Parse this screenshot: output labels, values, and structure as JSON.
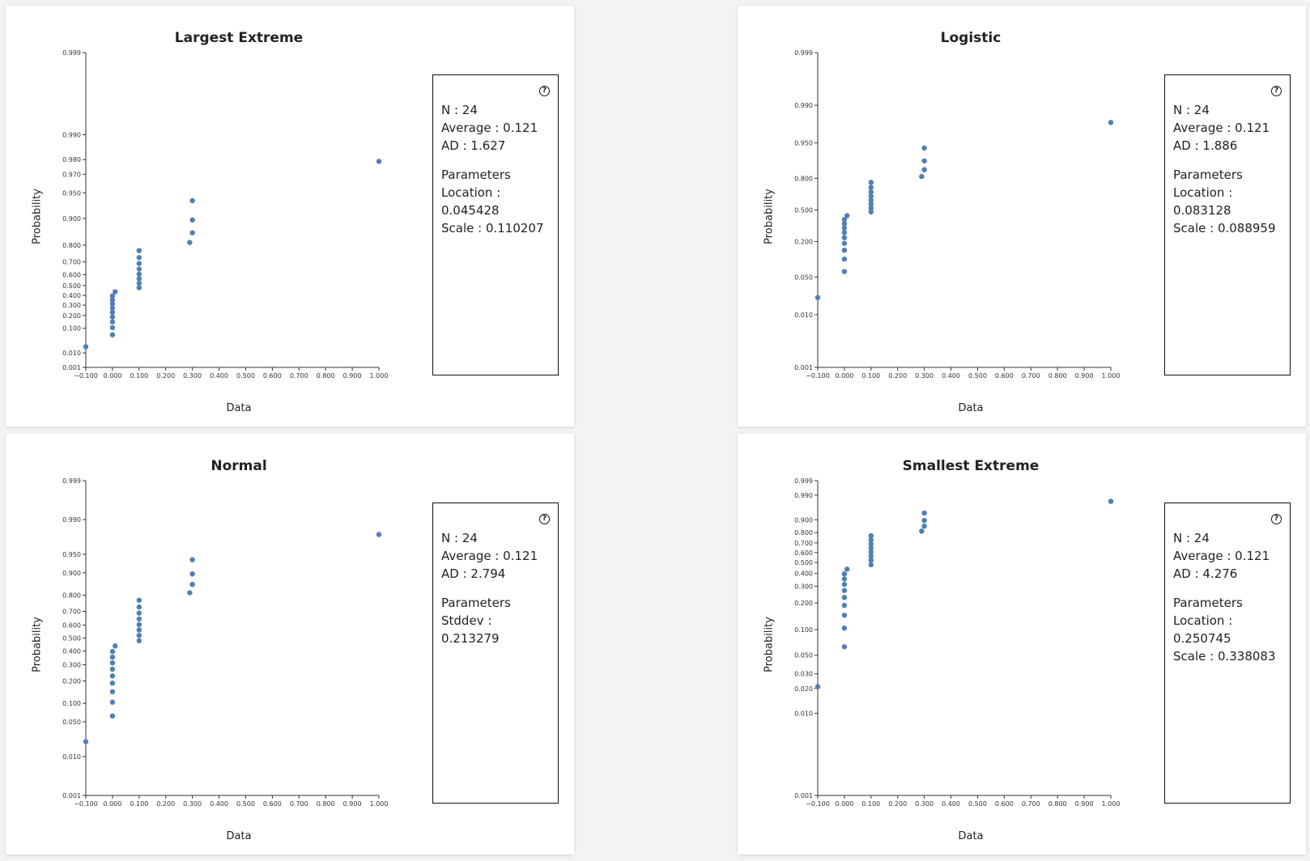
{
  "panels": [
    {
      "title": "Largest Extreme",
      "stats": {
        "n": "N : 24",
        "average": "Average : 0.121",
        "ad": "AD : 1.627",
        "params_header": "Parameters",
        "params": [
          "Location :",
          "0.045428",
          "Scale : 0.110207"
        ]
      }
    },
    {
      "title": "Logistic",
      "stats": {
        "n": "N : 24",
        "average": "Average : 0.121",
        "ad": "AD : 1.886",
        "params_header": "Parameters",
        "params": [
          "Location :",
          "0.083128",
          "Scale : 0.088959"
        ]
      }
    },
    {
      "title": "Normal",
      "stats": {
        "n": "N : 24",
        "average": "Average : 0.121",
        "ad": "AD : 2.794",
        "params_header": "Parameters",
        "params": [
          "Stddev : 0.213279"
        ]
      }
    },
    {
      "title": "Smallest Extreme",
      "stats": {
        "n": "N : 24",
        "average": "Average : 0.121",
        "ad": "AD : 4.276",
        "params_header": "Parameters",
        "params": [
          "Location :",
          "0.250745",
          "Scale : 0.338083"
        ]
      }
    }
  ],
  "help_icon": "question-circle-icon",
  "chart_data": [
    {
      "type": "scatter",
      "title": "Largest Extreme",
      "xlabel": "Data",
      "ylabel": "Probability",
      "x_ticks": [
        "−0.100",
        "0.000",
        "0.100",
        "0.200",
        "0.300",
        "0.400",
        "0.500",
        "0.600",
        "0.700",
        "0.800",
        "0.900",
        "1.000"
      ],
      "y_ticks": [
        [
          "0.999",
          0.999
        ],
        [
          "0.990",
          0.99
        ],
        [
          "0.980",
          0.98
        ],
        [
          "0.970",
          0.97
        ],
        [
          "0.950",
          0.95
        ],
        [
          "0.900",
          0.9
        ],
        [
          "0.800",
          0.8
        ],
        [
          "0.700",
          0.7
        ],
        [
          "0.600",
          0.6
        ],
        [
          "0.500",
          0.5
        ],
        [
          "0.400",
          0.4
        ],
        [
          "0.300",
          0.3
        ],
        [
          "0.200",
          0.2
        ],
        [
          "0.100",
          0.1
        ],
        [
          "0.010",
          0.01
        ],
        [
          "0.001",
          0.001
        ]
      ],
      "color": "#4f7fb5",
      "xlim": [
        -0.1,
        1.0
      ],
      "points": [
        [
          -0.1,
          0.021
        ],
        [
          0.0,
          0.063
        ],
        [
          0.0,
          0.104
        ],
        [
          0.0,
          0.146
        ],
        [
          0.0,
          0.188
        ],
        [
          0.0,
          0.229
        ],
        [
          0.0,
          0.271
        ],
        [
          0.0,
          0.313
        ],
        [
          0.0,
          0.354
        ],
        [
          0.0,
          0.396
        ],
        [
          0.01,
          0.438
        ],
        [
          0.1,
          0.479
        ],
        [
          0.1,
          0.521
        ],
        [
          0.1,
          0.563
        ],
        [
          0.1,
          0.604
        ],
        [
          0.1,
          0.646
        ],
        [
          0.1,
          0.688
        ],
        [
          0.1,
          0.729
        ],
        [
          0.1,
          0.771
        ],
        [
          0.29,
          0.813
        ],
        [
          0.3,
          0.854
        ],
        [
          0.3,
          0.896
        ],
        [
          0.3,
          0.938
        ],
        [
          1.0,
          0.979
        ]
      ]
    },
    {
      "type": "scatter",
      "title": "Logistic",
      "xlabel": "Data",
      "ylabel": "Probability",
      "x_ticks": [
        "−0.100",
        "0.000",
        "0.100",
        "0.200",
        "0.300",
        "0.400",
        "0.500",
        "0.600",
        "0.700",
        "0.800",
        "0.900",
        "1.000"
      ],
      "y_ticks": [
        [
          "0.999",
          0.999
        ],
        [
          "0.990",
          0.99
        ],
        [
          "0.950",
          0.95
        ],
        [
          "0.800",
          0.8
        ],
        [
          "0.500",
          0.5
        ],
        [
          "0.200",
          0.2
        ],
        [
          "0.050",
          0.05
        ],
        [
          "0.010",
          0.01
        ],
        [
          "0.001",
          0.001
        ]
      ],
      "color": "#4f7fb5",
      "xlim": [
        -0.1,
        1.0
      ],
      "points": [
        [
          -0.1,
          0.021
        ],
        [
          0.0,
          0.063
        ],
        [
          0.0,
          0.104
        ],
        [
          0.0,
          0.146
        ],
        [
          0.0,
          0.188
        ],
        [
          0.0,
          0.229
        ],
        [
          0.0,
          0.271
        ],
        [
          0.0,
          0.313
        ],
        [
          0.0,
          0.354
        ],
        [
          0.0,
          0.396
        ],
        [
          0.01,
          0.438
        ],
        [
          0.1,
          0.479
        ],
        [
          0.1,
          0.521
        ],
        [
          0.1,
          0.563
        ],
        [
          0.1,
          0.604
        ],
        [
          0.1,
          0.646
        ],
        [
          0.1,
          0.688
        ],
        [
          0.1,
          0.729
        ],
        [
          0.1,
          0.771
        ],
        [
          0.29,
          0.813
        ],
        [
          0.3,
          0.854
        ],
        [
          0.3,
          0.896
        ],
        [
          0.3,
          0.938
        ],
        [
          1.0,
          0.979
        ]
      ]
    },
    {
      "type": "scatter",
      "title": "Normal",
      "xlabel": "Data",
      "ylabel": "Probability",
      "x_ticks": [
        "−0.100",
        "0.000",
        "0.100",
        "0.200",
        "0.300",
        "0.400",
        "0.500",
        "0.600",
        "0.700",
        "0.800",
        "0.900",
        "1.000"
      ],
      "y_ticks": [
        [
          "0.999",
          0.999
        ],
        [
          "0.990",
          0.99
        ],
        [
          "0.950",
          0.95
        ],
        [
          "0.900",
          0.9
        ],
        [
          "0.800",
          0.8
        ],
        [
          "0.700",
          0.7
        ],
        [
          "0.600",
          0.6
        ],
        [
          "0.500",
          0.5
        ],
        [
          "0.400",
          0.4
        ],
        [
          "0.300",
          0.3
        ],
        [
          "0.200",
          0.2
        ],
        [
          "0.100",
          0.1
        ],
        [
          "0.050",
          0.05
        ],
        [
          "0.010",
          0.01
        ],
        [
          "0.001",
          0.001
        ]
      ],
      "color": "#4f7fb5",
      "xlim": [
        -0.1,
        1.0
      ],
      "points": [
        [
          -0.1,
          0.021
        ],
        [
          0.0,
          0.063
        ],
        [
          0.0,
          0.104
        ],
        [
          0.0,
          0.146
        ],
        [
          0.0,
          0.188
        ],
        [
          0.0,
          0.229
        ],
        [
          0.0,
          0.271
        ],
        [
          0.0,
          0.313
        ],
        [
          0.0,
          0.354
        ],
        [
          0.0,
          0.396
        ],
        [
          0.01,
          0.438
        ],
        [
          0.1,
          0.479
        ],
        [
          0.1,
          0.521
        ],
        [
          0.1,
          0.563
        ],
        [
          0.1,
          0.604
        ],
        [
          0.1,
          0.646
        ],
        [
          0.1,
          0.688
        ],
        [
          0.1,
          0.729
        ],
        [
          0.1,
          0.771
        ],
        [
          0.29,
          0.813
        ],
        [
          0.3,
          0.854
        ],
        [
          0.3,
          0.896
        ],
        [
          0.3,
          0.938
        ],
        [
          1.0,
          0.979
        ]
      ]
    },
    {
      "type": "scatter",
      "title": "Smallest Extreme",
      "xlabel": "Data",
      "ylabel": "Probability",
      "x_ticks": [
        "−0.100",
        "0.000",
        "0.100",
        "0.200",
        "0.300",
        "0.400",
        "0.500",
        "0.600",
        "0.700",
        "0.800",
        "0.900",
        "1.000"
      ],
      "y_ticks": [
        [
          "0.999",
          0.999
        ],
        [
          "0.990",
          0.99
        ],
        [
          "0.900",
          0.9
        ],
        [
          "0.800",
          0.8
        ],
        [
          "0.700",
          0.7
        ],
        [
          "0.600",
          0.6
        ],
        [
          "0.500",
          0.5
        ],
        [
          "0.400",
          0.4
        ],
        [
          "0.300",
          0.3
        ],
        [
          "0.200",
          0.2
        ],
        [
          "0.100",
          0.1
        ],
        [
          "0.050",
          0.05
        ],
        [
          "0.030",
          0.03
        ],
        [
          "0.020",
          0.02
        ],
        [
          "0.010",
          0.01
        ],
        [
          "0.001",
          0.001
        ]
      ],
      "color": "#4f7fb5",
      "xlim": [
        -0.1,
        1.0
      ],
      "points": [
        [
          -0.1,
          0.021
        ],
        [
          0.0,
          0.063
        ],
        [
          0.0,
          0.104
        ],
        [
          0.0,
          0.146
        ],
        [
          0.0,
          0.188
        ],
        [
          0.0,
          0.229
        ],
        [
          0.0,
          0.271
        ],
        [
          0.0,
          0.313
        ],
        [
          0.0,
          0.354
        ],
        [
          0.0,
          0.396
        ],
        [
          0.01,
          0.438
        ],
        [
          0.1,
          0.479
        ],
        [
          0.1,
          0.521
        ],
        [
          0.1,
          0.563
        ],
        [
          0.1,
          0.604
        ],
        [
          0.1,
          0.646
        ],
        [
          0.1,
          0.688
        ],
        [
          0.1,
          0.729
        ],
        [
          0.1,
          0.771
        ],
        [
          0.29,
          0.813
        ],
        [
          0.3,
          0.854
        ],
        [
          0.3,
          0.896
        ],
        [
          0.3,
          0.938
        ],
        [
          1.0,
          0.979
        ]
      ]
    }
  ]
}
